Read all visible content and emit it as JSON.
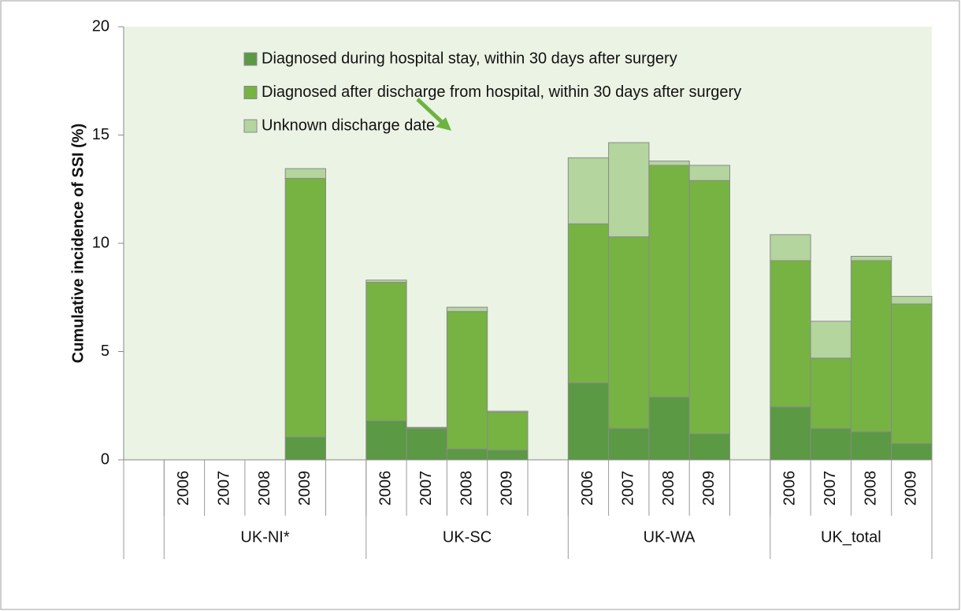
{
  "chart_data": {
    "type": "stacked_bar",
    "ylabel": "Cumulative incidence of SSI (%)",
    "categories": [
      null,
      "2006",
      "2007",
      "2008",
      "2009",
      null,
      "2006",
      "2007",
      "2008",
      "2009",
      null,
      "2006",
      "2007",
      "2008",
      "2009",
      null,
      "2006",
      "2007",
      "2008",
      "2009"
    ],
    "groups": [
      "UK-NI*",
      "UK-SC",
      "UK-WA",
      "UK_total"
    ],
    "series": [
      {
        "name": "Diagnosed during hospital stay, within 30 days after surgery",
        "color": "#5b9944",
        "values": [
          null,
          null,
          null,
          null,
          1.05,
          null,
          1.8,
          1.45,
          0.5,
          0.45,
          null,
          3.55,
          1.45,
          2.9,
          1.2,
          null,
          2.45,
          1.45,
          1.3,
          0.75
        ]
      },
      {
        "name": "Diagnosed after discharge from hospital, within 30 days after surgery",
        "color": "#76b342",
        "values": [
          null,
          null,
          null,
          null,
          11.95,
          null,
          6.4,
          0.05,
          6.35,
          1.75,
          null,
          7.35,
          8.85,
          10.7,
          11.7,
          null,
          6.75,
          3.25,
          7.9,
          6.45
        ]
      },
      {
        "name": "Unknown discharge date",
        "color": "#b4d59e",
        "values": [
          null,
          null,
          null,
          null,
          0.45,
          null,
          0.1,
          0,
          0.2,
          0.05,
          null,
          3.05,
          4.35,
          0.2,
          0.7,
          null,
          1.2,
          1.7,
          0.2,
          0.35
        ]
      }
    ],
    "ylim": [
      0,
      20
    ],
    "yticks": [
      0,
      5,
      10,
      15,
      20
    ]
  }
}
